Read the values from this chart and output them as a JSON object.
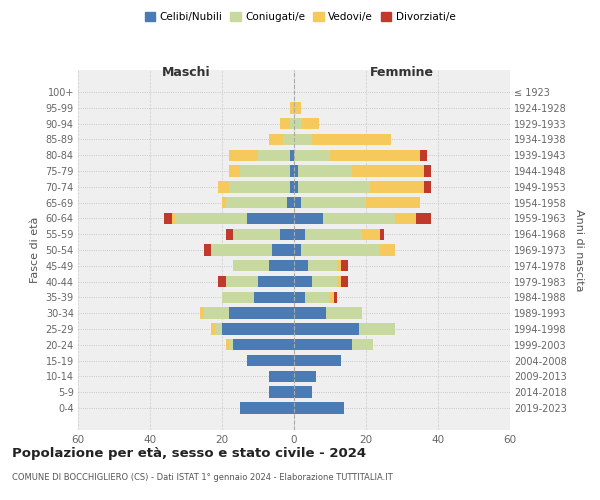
{
  "age_groups": [
    "0-4",
    "5-9",
    "10-14",
    "15-19",
    "20-24",
    "25-29",
    "30-34",
    "35-39",
    "40-44",
    "45-49",
    "50-54",
    "55-59",
    "60-64",
    "65-69",
    "70-74",
    "75-79",
    "80-84",
    "85-89",
    "90-94",
    "95-99",
    "100+"
  ],
  "birth_years": [
    "2019-2023",
    "2014-2018",
    "2009-2013",
    "2004-2008",
    "1999-2003",
    "1994-1998",
    "1989-1993",
    "1984-1988",
    "1979-1983",
    "1974-1978",
    "1969-1973",
    "1964-1968",
    "1959-1963",
    "1954-1958",
    "1949-1953",
    "1944-1948",
    "1939-1943",
    "1934-1938",
    "1929-1933",
    "1924-1928",
    "≤ 1923"
  ],
  "colors": {
    "celibi": "#4a7bb5",
    "coniugati": "#c8d9a0",
    "vedovi": "#f5c95c",
    "divorziati": "#c0392b"
  },
  "legend_colors": {
    "Celibi/Nubili": "#4a7bb5",
    "Coniugati/e": "#c8d9a0",
    "Vedovi/e": "#f5c95c",
    "Divorziati/e": "#c0392b"
  },
  "males": {
    "celibi": [
      15,
      7,
      7,
      13,
      17,
      20,
      18,
      11,
      10,
      7,
      6,
      4,
      13,
      2,
      1,
      1,
      1,
      0,
      0,
      0,
      0
    ],
    "coniugati": [
      0,
      0,
      0,
      0,
      1,
      2,
      7,
      9,
      9,
      10,
      17,
      13,
      20,
      17,
      17,
      14,
      9,
      3,
      1,
      0,
      0
    ],
    "vedovi": [
      0,
      0,
      0,
      0,
      1,
      1,
      1,
      0,
      0,
      0,
      0,
      0,
      1,
      1,
      3,
      3,
      8,
      4,
      3,
      1,
      0
    ],
    "divorziati": [
      0,
      0,
      0,
      0,
      0,
      0,
      0,
      0,
      2,
      0,
      2,
      2,
      2,
      0,
      0,
      0,
      0,
      0,
      0,
      0,
      0
    ]
  },
  "females": {
    "nubili": [
      14,
      5,
      6,
      13,
      16,
      18,
      9,
      3,
      5,
      4,
      2,
      3,
      8,
      2,
      1,
      1,
      0,
      0,
      0,
      0,
      0
    ],
    "coniugate": [
      0,
      0,
      0,
      0,
      6,
      10,
      10,
      7,
      7,
      8,
      22,
      16,
      20,
      18,
      20,
      15,
      10,
      5,
      2,
      0,
      0
    ],
    "vedove": [
      0,
      0,
      0,
      0,
      0,
      0,
      0,
      1,
      1,
      1,
      4,
      5,
      6,
      15,
      15,
      20,
      25,
      22,
      5,
      2,
      0
    ],
    "divorziate": [
      0,
      0,
      0,
      0,
      0,
      0,
      0,
      1,
      2,
      2,
      0,
      1,
      4,
      0,
      2,
      2,
      2,
      0,
      0,
      0,
      0
    ]
  },
  "xlim": 60,
  "title": "Popolazione per età, sesso e stato civile - 2024",
  "subtitle": "COMUNE DI BOCCHIGLIERO (CS) - Dati ISTAT 1° gennaio 2024 - Elaborazione TUTTITALIA.IT",
  "ylabel_left": "Fasce di età",
  "ylabel_right": "Anni di nascita",
  "xlabel_left": "Maschi",
  "xlabel_right": "Femmine"
}
